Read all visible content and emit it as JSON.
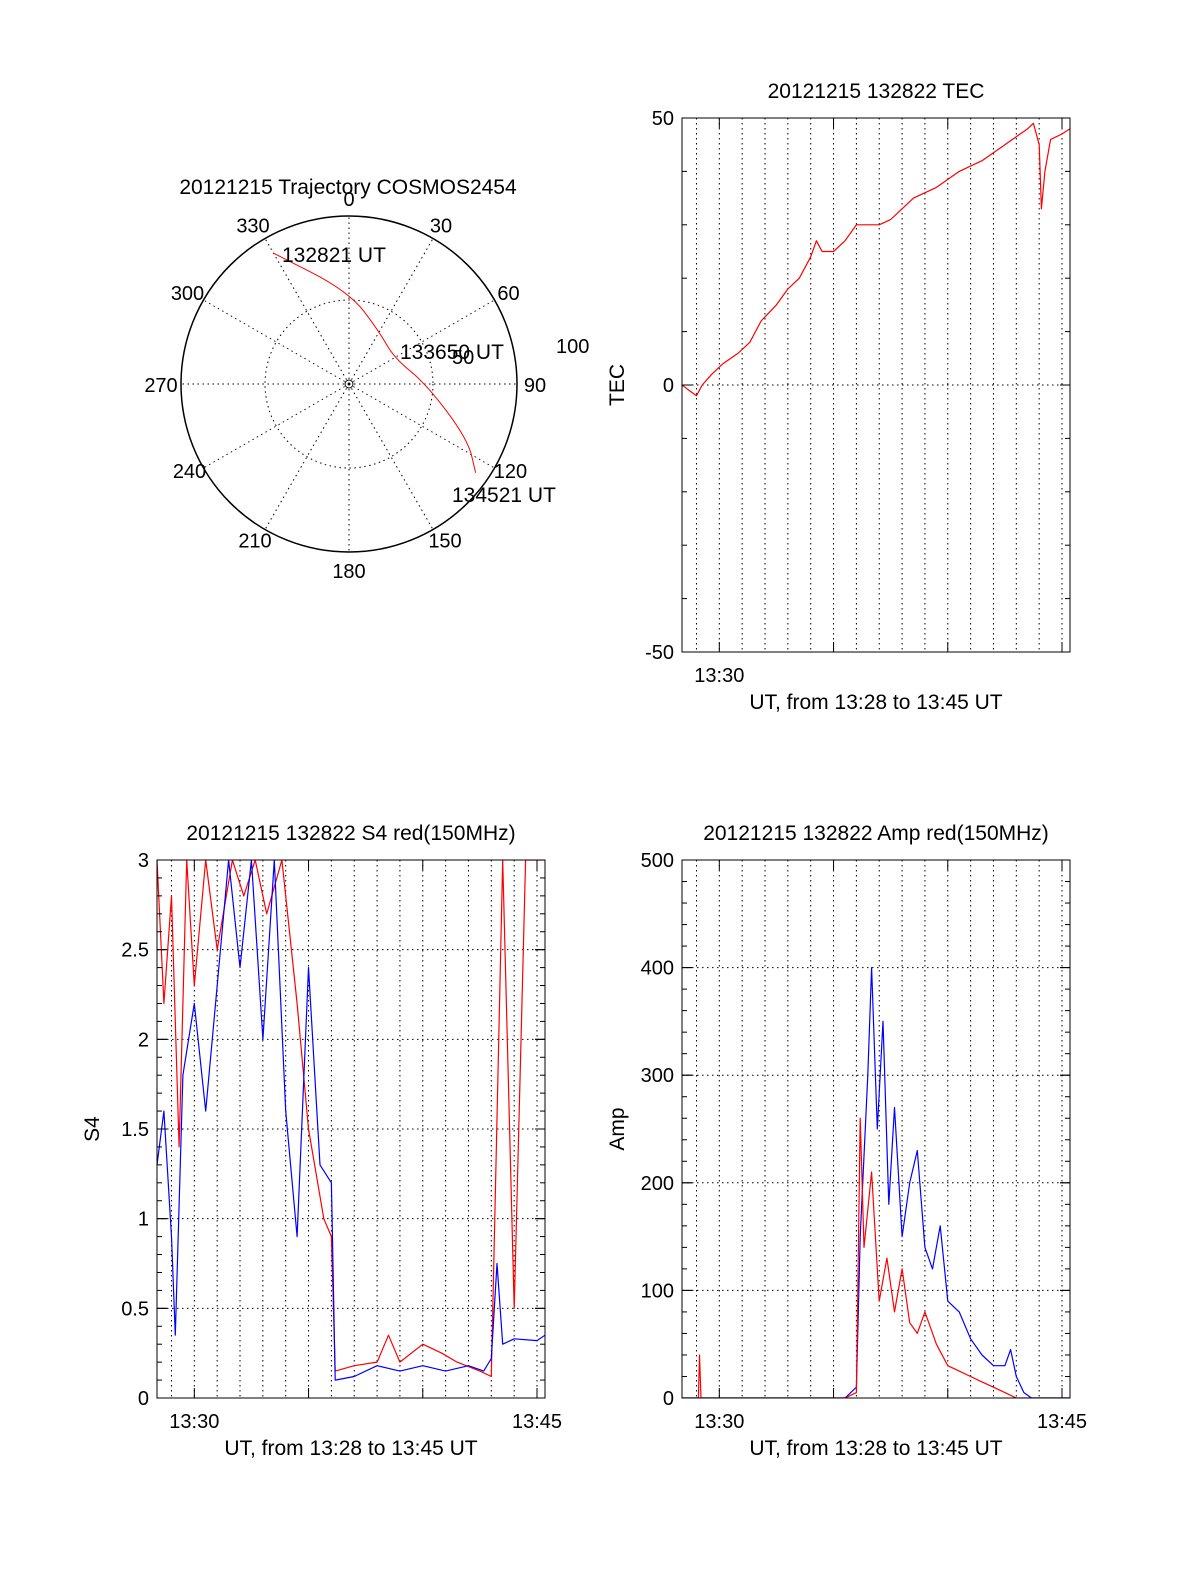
{
  "colors": {
    "red": "#ff0000",
    "blue": "#0000ff"
  },
  "chart_data": [
    {
      "type": "polar",
      "title": "20121215 Trajectory COSMOS2454",
      "angle_labels": [
        "0",
        "30",
        "60",
        "90",
        "120",
        "150",
        "180",
        "210",
        "240",
        "270",
        "300",
        "330"
      ],
      "radius_labels": [
        "50",
        "100"
      ],
      "rlim": [
        0,
        100
      ],
      "grid": true,
      "series": [
        {
          "color": "red",
          "points": [
            {
              "az": 330,
              "r": 90,
              "time": "132821 UT"
            },
            {
              "az": 0,
              "r": 55
            },
            {
              "az": 30,
              "r": 36
            },
            {
              "az": 60,
              "r": 31,
              "time": "133650 UT"
            },
            {
              "az": 90,
              "r": 46
            },
            {
              "az": 115,
              "r": 78
            },
            {
              "az": 125,
              "r": 92,
              "time": "134521 UT"
            }
          ]
        }
      ],
      "annotations": [
        "132821 UT",
        "133650 UT",
        "134521 UT"
      ]
    },
    {
      "type": "line",
      "title": "20121215 132822 TEC",
      "xlabel": "UT, from 13:28 to 13:45 UT",
      "ylabel": "TEC",
      "xlim": [
        "13:28:22",
        "13:45:21"
      ],
      "ylim": [
        -50,
        50
      ],
      "yticks": [
        "50",
        "0",
        "-50"
      ],
      "xticks": [
        {
          "t": "13:30:00",
          "label": "13:30"
        }
      ],
      "grid": true,
      "series": [
        {
          "color": "red",
          "points": [
            [
              "13:28:22",
              0
            ],
            [
              "13:28:40",
              -1
            ],
            [
              "13:29:00",
              -2
            ],
            [
              "13:29:15",
              0
            ],
            [
              "13:29:40",
              2
            ],
            [
              "13:30:10",
              4
            ],
            [
              "13:30:50",
              6
            ],
            [
              "13:31:20",
              8
            ],
            [
              "13:31:50",
              12
            ],
            [
              "13:32:30",
              15
            ],
            [
              "13:33:00",
              18
            ],
            [
              "13:33:30",
              20
            ],
            [
              "13:34:00",
              24
            ],
            [
              "13:34:15",
              27
            ],
            [
              "13:34:30",
              25
            ],
            [
              "13:35:00",
              25
            ],
            [
              "13:35:30",
              27
            ],
            [
              "13:35:50",
              29
            ],
            [
              "13:36:00",
              30
            ],
            [
              "13:37:00",
              30
            ],
            [
              "13:37:30",
              31
            ],
            [
              "13:38:00",
              33
            ],
            [
              "13:38:30",
              35
            ],
            [
              "13:39:30",
              37
            ],
            [
              "13:40:30",
              40
            ],
            [
              "13:41:30",
              42
            ],
            [
              "13:42:30",
              45
            ],
            [
              "13:43:30",
              48
            ],
            [
              "13:43:45",
              49
            ],
            [
              "13:44:00",
              45
            ],
            [
              "13:44:06",
              33
            ],
            [
              "13:44:15",
              40
            ],
            [
              "13:44:30",
              46
            ],
            [
              "13:45:00",
              47
            ],
            [
              "13:45:21",
              48
            ]
          ]
        }
      ]
    },
    {
      "type": "line",
      "title": "20121215 132822 S4 red(150MHz)",
      "xlabel": "UT, from 13:28 to 13:45 UT",
      "ylabel": "S4",
      "xlim": [
        "13:28:22",
        "13:45:21"
      ],
      "ylim": [
        0,
        3
      ],
      "yticks": [
        "0",
        "0.5",
        "1",
        "1.5",
        "2",
        "2.5",
        "3"
      ],
      "xticks": [
        {
          "t": "13:30:00",
          "label": "13:30"
        },
        {
          "t": "13:45:00",
          "label": "13:45"
        }
      ],
      "grid": true,
      "series": [
        {
          "color": "red",
          "points": [
            [
              "13:28:22",
              3
            ],
            [
              "13:28:40",
              2.2
            ],
            [
              "13:29:00",
              2.8
            ],
            [
              "13:29:20",
              1.4
            ],
            [
              "13:29:40",
              3
            ],
            [
              "13:30:00",
              2.3
            ],
            [
              "13:30:30",
              3
            ],
            [
              "13:31:00",
              2.5
            ],
            [
              "13:31:40",
              3
            ],
            [
              "13:32:10",
              2.8
            ],
            [
              "13:32:40",
              3
            ],
            [
              "13:33:10",
              2.7
            ],
            [
              "13:33:50",
              3
            ],
            [
              "13:34:30",
              2.2
            ],
            [
              "13:35:00",
              1.5
            ],
            [
              "13:35:40",
              1
            ],
            [
              "13:36:00",
              0.9
            ],
            [
              "13:36:10",
              0.15
            ],
            [
              "13:37:00",
              0.18
            ],
            [
              "13:38:00",
              0.2
            ],
            [
              "13:38:30",
              0.35
            ],
            [
              "13:39:00",
              0.2
            ],
            [
              "13:40:00",
              0.3
            ],
            [
              "13:40:50",
              0.25
            ],
            [
              "13:41:30",
              0.2
            ],
            [
              "13:42:30",
              0.15
            ],
            [
              "13:43:00",
              0.12
            ],
            [
              "13:43:30",
              3
            ],
            [
              "13:44:00",
              0.5
            ],
            [
              "13:44:30",
              3
            ],
            [
              "13:45:00",
              3
            ],
            [
              "13:45:21",
              3
            ]
          ]
        },
        {
          "color": "blue",
          "points": [
            [
              "13:28:22",
              1.3
            ],
            [
              "13:28:40",
              1.6
            ],
            [
              "13:29:00",
              0.9
            ],
            [
              "13:29:10",
              0.35
            ],
            [
              "13:29:30",
              1.8
            ],
            [
              "13:30:00",
              2.2
            ],
            [
              "13:30:30",
              1.6
            ],
            [
              "13:31:00",
              2.3
            ],
            [
              "13:31:30",
              3
            ],
            [
              "13:32:00",
              2.4
            ],
            [
              "13:32:30",
              3
            ],
            [
              "13:33:00",
              2.0
            ],
            [
              "13:33:30",
              3
            ],
            [
              "13:34:00",
              1.6
            ],
            [
              "13:34:30",
              0.9
            ],
            [
              "13:35:00",
              2.4
            ],
            [
              "13:35:30",
              1.3
            ],
            [
              "13:36:00",
              1.2
            ],
            [
              "13:36:10",
              0.1
            ],
            [
              "13:37:00",
              0.12
            ],
            [
              "13:38:00",
              0.18
            ],
            [
              "13:39:00",
              0.15
            ],
            [
              "13:40:00",
              0.18
            ],
            [
              "13:41:00",
              0.15
            ],
            [
              "13:42:00",
              0.18
            ],
            [
              "13:42:40",
              0.15
            ],
            [
              "13:43:00",
              0.22
            ],
            [
              "13:43:15",
              0.75
            ],
            [
              "13:43:30",
              0.3
            ],
            [
              "13:44:00",
              0.33
            ],
            [
              "13:45:00",
              0.32
            ],
            [
              "13:45:21",
              0.35
            ]
          ]
        }
      ]
    },
    {
      "type": "line",
      "title": "20121215 132822 Amp red(150MHz)",
      "xlabel": "UT, from 13:28 to 13:45 UT",
      "ylabel": "Amp",
      "xlim": [
        "13:28:22",
        "13:45:21"
      ],
      "ylim": [
        0,
        500
      ],
      "yticks": [
        "0",
        "100",
        "200",
        "300",
        "400",
        "500"
      ],
      "xticks": [
        {
          "t": "13:30:00",
          "label": "13:30"
        },
        {
          "t": "13:45:00",
          "label": "13:45"
        }
      ],
      "grid": true,
      "series": [
        {
          "color": "blue",
          "points": [
            [
              "13:28:22",
              0
            ],
            [
              "13:35:30",
              0
            ],
            [
              "13:36:00",
              10
            ],
            [
              "13:36:10",
              150
            ],
            [
              "13:36:30",
              300
            ],
            [
              "13:36:40",
              400
            ],
            [
              "13:36:55",
              250
            ],
            [
              "13:37:10",
              350
            ],
            [
              "13:37:25",
              180
            ],
            [
              "13:37:40",
              270
            ],
            [
              "13:38:00",
              150
            ],
            [
              "13:38:20",
              200
            ],
            [
              "13:38:40",
              230
            ],
            [
              "13:39:00",
              140
            ],
            [
              "13:39:20",
              120
            ],
            [
              "13:39:40",
              160
            ],
            [
              "13:40:00",
              90
            ],
            [
              "13:40:30",
              80
            ],
            [
              "13:41:00",
              55
            ],
            [
              "13:41:30",
              40
            ],
            [
              "13:42:00",
              30
            ],
            [
              "13:42:30",
              30
            ],
            [
              "13:42:45",
              45
            ],
            [
              "13:43:00",
              20
            ],
            [
              "13:43:20",
              5
            ],
            [
              "13:43:40",
              0
            ],
            [
              "13:45:21",
              0
            ]
          ]
        },
        {
          "color": "red",
          "points": [
            [
              "13:28:22",
              0
            ],
            [
              "13:29:05",
              0
            ],
            [
              "13:29:08",
              40
            ],
            [
              "13:29:12",
              0
            ],
            [
              "13:35:30",
              0
            ],
            [
              "13:36:00",
              5
            ],
            [
              "13:36:10",
              260
            ],
            [
              "13:36:20",
              140
            ],
            [
              "13:36:40",
              210
            ],
            [
              "13:37:00",
              90
            ],
            [
              "13:37:20",
              130
            ],
            [
              "13:37:40",
              80
            ],
            [
              "13:38:00",
              120
            ],
            [
              "13:38:20",
              70
            ],
            [
              "13:38:40",
              60
            ],
            [
              "13:39:00",
              80
            ],
            [
              "13:39:30",
              50
            ],
            [
              "13:40:00",
              30
            ],
            [
              "13:40:30",
              25
            ],
            [
              "13:41:00",
              20
            ],
            [
              "13:41:30",
              15
            ],
            [
              "13:42:00",
              10
            ],
            [
              "13:42:30",
              5
            ],
            [
              "13:43:00",
              0
            ],
            [
              "13:45:21",
              0
            ]
          ]
        }
      ]
    }
  ]
}
